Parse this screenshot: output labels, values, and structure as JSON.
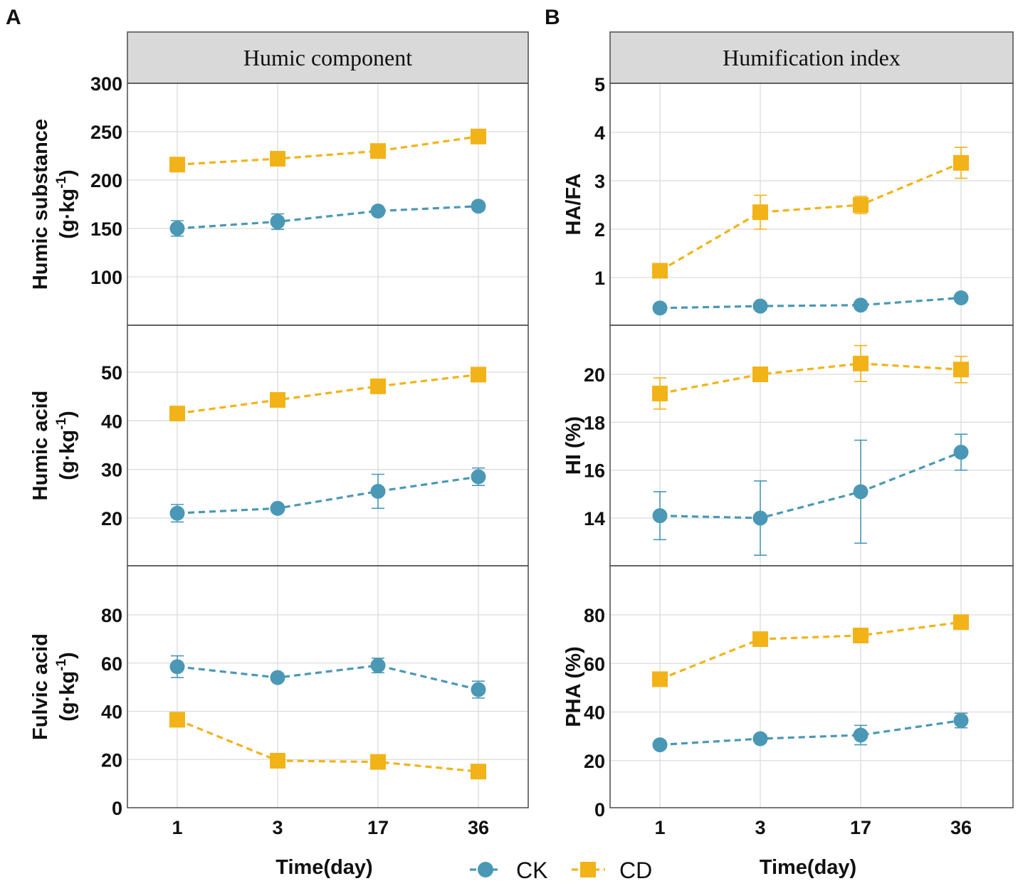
{
  "chart_data": {
    "type": "line",
    "x": [
      "1",
      "3",
      "17",
      "36"
    ],
    "xlabel": "Time(day)",
    "legend": [
      {
        "name": "CK",
        "color": "#4a98b5",
        "marker": "circle"
      },
      {
        "name": "CD",
        "color": "#f2b318",
        "marker": "square"
      }
    ],
    "panels": [
      {
        "letter": "A",
        "strip": "Humic component",
        "subplots": [
          {
            "ylabel": "Humic substance",
            "yunit": "(g·kg",
            "ylim": [
              50,
              300
            ],
            "yticks": [
              100,
              150,
              200,
              250,
              300
            ],
            "series": [
              {
                "name": "CK",
                "values": [
                  150,
                  157,
                  168,
                  173
                ],
                "errors": [
                  8,
                  8,
                  3,
                  4
                ]
              },
              {
                "name": "CD",
                "values": [
                  216,
                  222,
                  230,
                  245
                ],
                "errors": [
                  3,
                  3,
                  3,
                  3
                ]
              }
            ]
          },
          {
            "ylabel": "Humic acid",
            "yunit": "(g·kg",
            "ylim": [
              10,
              60
            ],
            "yticks": [
              20,
              30,
              40,
              50
            ],
            "series": [
              {
                "name": "CK",
                "values": [
                  21,
                  22,
                  25.5,
                  28.5
                ],
                "errors": [
                  1.8,
                  0.5,
                  3.5,
                  1.8
                ]
              },
              {
                "name": "CD",
                "values": [
                  41.5,
                  44.3,
                  47.1,
                  49.5
                ],
                "errors": [
                  0.5,
                  0.5,
                  0.8,
                  0.5
                ]
              }
            ]
          },
          {
            "ylabel": "Fulvic acid",
            "yunit": "(g·kg",
            "ylim": [
              0,
              100
            ],
            "yticks": [
              0,
              20,
              40,
              60,
              80
            ],
            "series": [
              {
                "name": "CK",
                "values": [
                  58.5,
                  54,
                  59,
                  49
                ],
                "errors": [
                  4.5,
                  1,
                  3,
                  3.5
                ]
              },
              {
                "name": "CD",
                "values": [
                  36.5,
                  19.5,
                  19,
                  15
                ],
                "errors": [
                  1.5,
                  1,
                  1,
                  1
                ]
              }
            ]
          }
        ]
      },
      {
        "letter": "B",
        "strip": "Humification index",
        "subplots": [
          {
            "ylabel": "HA/FA",
            "yunit": "",
            "ylim": [
              0,
              5
            ],
            "yticks": [
              1,
              2,
              3,
              4,
              5
            ],
            "series": [
              {
                "name": "CK",
                "values": [
                  0.37,
                  0.41,
                  0.43,
                  0.58
                ],
                "errors": [
                  0.03,
                  0.03,
                  0.03,
                  0.04
                ]
              },
              {
                "name": "CD",
                "values": [
                  1.14,
                  2.35,
                  2.5,
                  3.37
                ],
                "errors": [
                  0.08,
                  0.35,
                  0.18,
                  0.32
                ]
              }
            ]
          },
          {
            "ylabel": "HI  (%)",
            "yunit": "",
            "ylim": [
              12,
              22
            ],
            "yticks": [
              14,
              16,
              18,
              20
            ],
            "series": [
              {
                "name": "CK",
                "values": [
                  14.1,
                  14,
                  15.1,
                  16.75
                ],
                "errors": [
                  1,
                  1.55,
                  2.15,
                  0.75
                ]
              },
              {
                "name": "CD",
                "values": [
                  19.2,
                  20,
                  20.45,
                  20.2
                ],
                "errors": [
                  0.65,
                  0.1,
                  0.75,
                  0.55
                ]
              }
            ]
          },
          {
            "ylabel": "PHA (%)",
            "yunit": "",
            "ylim": [
              0,
              100
            ],
            "yticks": [
              0,
              20,
              40,
              60,
              80
            ],
            "series": [
              {
                "name": "CK",
                "values": [
                  26.5,
                  29,
                  30.5,
                  36.5
                ],
                "errors": [
                  1,
                  1,
                  4,
                  3
                ]
              },
              {
                "name": "CD",
                "values": [
                  53.5,
                  70,
                  71.5,
                  77
                ],
                "errors": [
                  1,
                  1.5,
                  1.5,
                  1
                ]
              }
            ]
          }
        ]
      }
    ]
  }
}
